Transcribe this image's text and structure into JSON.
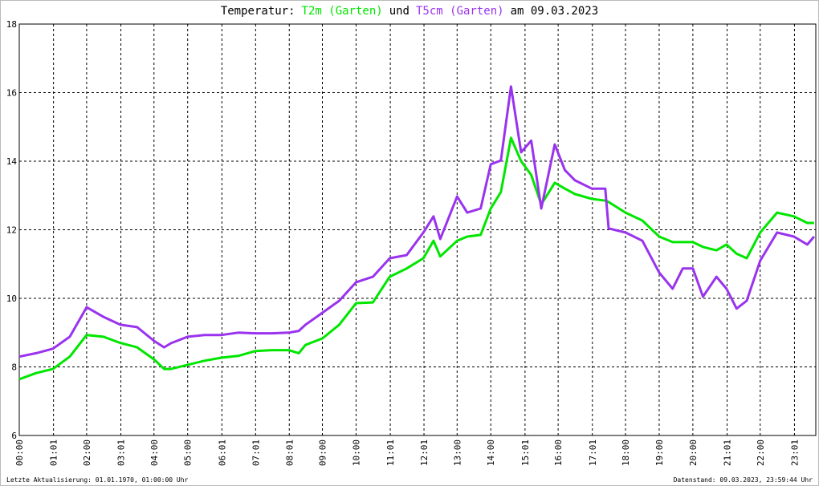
{
  "chart_data": {
    "type": "line",
    "title_prefix": "Temperatur:",
    "title_join": "und",
    "title_date": "am 09.03.2023",
    "footer_left": "Letzte Aktualisierung: 01.01.1970, 01:00:00 Uhr",
    "footer_right": "Datenstand: 09.03.2023, 23:59:44 Uhr",
    "grid": true,
    "xlim": [
      0,
      23.65
    ],
    "ylim": [
      6,
      18
    ],
    "yticks": [
      6,
      8,
      10,
      12,
      14,
      16,
      18
    ],
    "xticks": [
      {
        "value": 0,
        "label": "00:00"
      },
      {
        "value": 1.0167,
        "label": "01:01"
      },
      {
        "value": 2,
        "label": "02:00"
      },
      {
        "value": 3.0167,
        "label": "03:01"
      },
      {
        "value": 4,
        "label": "04:00"
      },
      {
        "value": 5,
        "label": "05:00"
      },
      {
        "value": 6.0167,
        "label": "06:01"
      },
      {
        "value": 7.0167,
        "label": "07:01"
      },
      {
        "value": 8.0167,
        "label": "08:01"
      },
      {
        "value": 9,
        "label": "09:00"
      },
      {
        "value": 10,
        "label": "10:00"
      },
      {
        "value": 11.0167,
        "label": "11:01"
      },
      {
        "value": 12.0167,
        "label": "12:01"
      },
      {
        "value": 13,
        "label": "13:00"
      },
      {
        "value": 14,
        "label": "14:00"
      },
      {
        "value": 15.0167,
        "label": "15:01"
      },
      {
        "value": 16,
        "label": "16:00"
      },
      {
        "value": 17.0167,
        "label": "17:01"
      },
      {
        "value": 18,
        "label": "18:00"
      },
      {
        "value": 19,
        "label": "19:00"
      },
      {
        "value": 20,
        "label": "20:00"
      },
      {
        "value": 21.0167,
        "label": "21:01"
      },
      {
        "value": 22,
        "label": "22:00"
      },
      {
        "value": 23.0167,
        "label": "23:01"
      }
    ],
    "x": [
      0,
      0.5,
      1,
      1.5,
      2,
      2.5,
      3,
      3.5,
      4,
      4.3,
      4.5,
      5,
      5.5,
      6,
      6.5,
      7,
      7.5,
      8,
      8.3,
      8.5,
      9,
      9.5,
      10,
      10.5,
      11,
      11.5,
      12,
      12.3,
      12.5,
      13,
      13.3,
      13.7,
      14,
      14.3,
      14.6,
      14.9,
      15.2,
      15.5,
      15.9,
      16.2,
      16.5,
      17,
      17.4,
      17.5,
      18,
      18.5,
      19,
      19.4,
      19.7,
      20,
      20.3,
      20.7,
      21,
      21.3,
      21.6,
      22,
      22.5,
      23,
      23.4,
      23.6
    ],
    "series": [
      {
        "name": "T2m (Garten)",
        "color": "#00e600",
        "values": [
          7.64,
          7.82,
          7.94,
          8.3,
          8.93,
          8.88,
          8.7,
          8.57,
          8.22,
          7.94,
          7.94,
          8.06,
          8.18,
          8.27,
          8.32,
          8.46,
          8.49,
          8.49,
          8.4,
          8.64,
          8.83,
          9.23,
          9.86,
          9.88,
          10.63,
          10.87,
          11.17,
          11.68,
          11.22,
          11.68,
          11.8,
          11.85,
          12.62,
          13.1,
          14.68,
          14.0,
          13.6,
          12.74,
          13.37,
          13.2,
          13.04,
          12.9,
          12.85,
          12.81,
          12.5,
          12.27,
          11.8,
          11.64,
          11.64,
          11.64,
          11.5,
          11.4,
          11.57,
          11.3,
          11.17,
          11.92,
          12.5,
          12.39,
          12.2,
          12.2
        ]
      },
      {
        "name": "T5cm (Garten)",
        "color": "#9933ee",
        "values": [
          8.3,
          8.4,
          8.53,
          8.88,
          9.74,
          9.46,
          9.23,
          9.16,
          8.76,
          8.57,
          8.69,
          8.88,
          8.93,
          8.93,
          9.0,
          8.98,
          8.98,
          9.0,
          9.05,
          9.23,
          9.58,
          9.93,
          10.47,
          10.63,
          11.17,
          11.26,
          11.92,
          12.39,
          11.73,
          12.97,
          12.5,
          12.62,
          13.91,
          14.02,
          16.18,
          14.26,
          14.6,
          12.62,
          14.49,
          13.74,
          13.44,
          13.2,
          13.2,
          12.04,
          11.92,
          11.68,
          10.75,
          10.28,
          10.87,
          10.87,
          10.05,
          10.63,
          10.28,
          9.7,
          9.93,
          11.1,
          11.92,
          11.8,
          11.57,
          11.8
        ]
      }
    ]
  }
}
